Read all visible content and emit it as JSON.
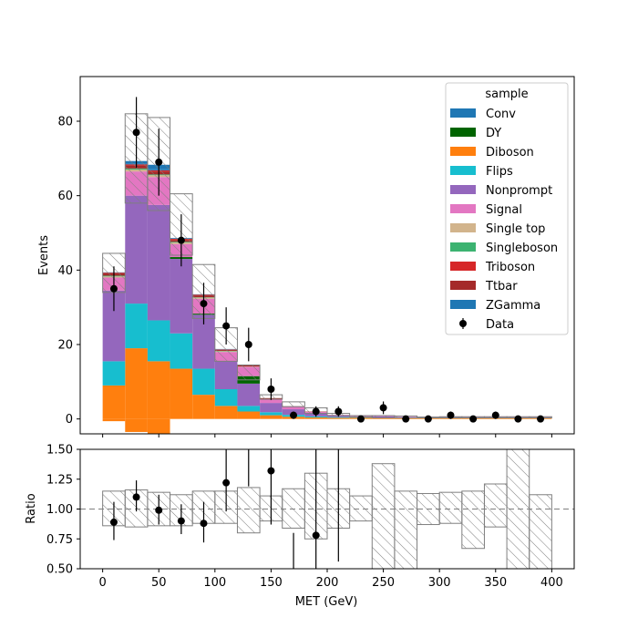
{
  "chart_data": {
    "type": "bar",
    "stacked": true,
    "bin_edges": [
      0,
      20,
      40,
      60,
      80,
      100,
      120,
      140,
      160,
      180,
      200,
      220,
      240,
      260,
      280,
      300,
      320,
      340,
      360,
      380,
      400
    ],
    "x_bin_centers": [
      10,
      30,
      50,
      70,
      90,
      110,
      130,
      150,
      170,
      190,
      210,
      230,
      250,
      270,
      290,
      310,
      330,
      350,
      370,
      390
    ],
    "xlabel": "MET (GeV)",
    "ylabel": "Events",
    "ratio_ylabel": "Ratio",
    "xlim": [
      -20,
      420
    ],
    "ylim": [
      -4,
      92
    ],
    "ratio_ylim": [
      0.5,
      1.5
    ],
    "x_ticks": [
      "0",
      "50",
      "100",
      "150",
      "200",
      "250",
      "300",
      "350",
      "400"
    ],
    "y_ticks": [
      "0",
      "20",
      "40",
      "60",
      "80"
    ],
    "ratio_y_ticks": [
      "0.50",
      "0.75",
      "1.00",
      "1.25",
      "1.50"
    ],
    "grid": false,
    "legend_title": "sample",
    "legend_position": "top-right",
    "series": [
      {
        "name": "Diboson",
        "color": "#ff7f0e",
        "values": [
          9,
          19,
          15.5,
          13.5,
          6.5,
          3.5,
          2,
          1,
          0.6,
          0.4,
          0.3,
          0.3,
          0.3,
          0.2,
          0.2,
          0.2,
          0.2,
          0.2,
          0.2,
          0.2
        ],
        "neg": [
          -0.6,
          -3.5,
          -4,
          0,
          0,
          0,
          0,
          0,
          0,
          0,
          0,
          0,
          0,
          0,
          0,
          0,
          0,
          0,
          0,
          0
        ]
      },
      {
        "name": "Flips",
        "color": "#17becf",
        "values": [
          6.5,
          12,
          11,
          9.5,
          7,
          4.5,
          1.5,
          0.8,
          0.5,
          0.3,
          0.2,
          0.1,
          0.1,
          0.1,
          0.1,
          0.1,
          0.1,
          0.1,
          0.1,
          0.1
        ]
      },
      {
        "name": "Nonprompt",
        "color": "#9467bd",
        "values": [
          19,
          29,
          31,
          20,
          14.5,
          7.5,
          6,
          2.5,
          1.5,
          0.7,
          0.4,
          0.3,
          0.3,
          0.2,
          0.2,
          0.2,
          0.1,
          0.1,
          0.1,
          0.1
        ]
      },
      {
        "name": "DY",
        "color": "#006400",
        "values": [
          0,
          0,
          0,
          0.5,
          0.3,
          0,
          2,
          0,
          0,
          0,
          0,
          0,
          0,
          0,
          0,
          0,
          0,
          0,
          0,
          0
        ]
      },
      {
        "name": "Signal",
        "color": "#e377c2",
        "values": [
          3.5,
          6.5,
          7.5,
          3.5,
          4,
          2.5,
          2.5,
          1,
          0.7,
          0.5,
          0.2,
          0.1,
          0.1,
          0.1,
          0.1,
          0.1,
          0.1,
          0.1,
          0.1,
          0.1
        ]
      },
      {
        "name": "Single top",
        "color": "#d2b48c",
        "values": [
          0.3,
          0.5,
          0.5,
          0.4,
          0.3,
          0.2,
          0.1,
          0.1,
          0,
          0,
          0,
          0,
          0,
          0,
          0,
          0,
          0,
          0,
          0,
          0
        ]
      },
      {
        "name": "Singleboson",
        "color": "#3cb371",
        "values": [
          0.2,
          0.3,
          0.2,
          0.2,
          0.1,
          0.1,
          0,
          0,
          0,
          0,
          0,
          0,
          0,
          0,
          0,
          0,
          0,
          0,
          0,
          0
        ]
      },
      {
        "name": "Ttbar",
        "color": "#a52a2a",
        "values": [
          0.6,
          0.8,
          0.8,
          0.5,
          0.5,
          0.3,
          0.3,
          0.2,
          0.1,
          0.1,
          0,
          0,
          0,
          0,
          0,
          0,
          0,
          0,
          0,
          0
        ]
      },
      {
        "name": "Triboson",
        "color": "#d62728",
        "values": [
          0.2,
          0.3,
          0.3,
          0.3,
          0.2,
          0.1,
          0.1,
          0,
          0,
          0,
          0,
          0,
          0,
          0,
          0,
          0,
          0,
          0,
          0,
          0
        ]
      },
      {
        "name": "Conv",
        "color": "#1f77b4",
        "values": [
          0.1,
          0.3,
          0.3,
          0.2,
          0.1,
          0.1,
          0,
          0,
          0,
          0,
          0,
          0,
          0,
          0,
          0,
          0,
          0,
          0,
          0,
          0
        ]
      },
      {
        "name": "ZGamma",
        "color": "#1f77b4",
        "values": [
          0,
          0.6,
          1.2,
          0,
          0,
          0,
          0,
          0,
          0,
          0,
          0,
          0,
          0,
          0,
          0,
          0,
          0,
          0,
          0,
          0
        ]
      }
    ],
    "legend_order": [
      "Conv",
      "DY",
      "Diboson",
      "Flips",
      "Nonprompt",
      "Signal",
      "Single top",
      "Singleboson",
      "Triboson",
      "Ttbar",
      "ZGamma",
      "Data"
    ],
    "uncertainty_band": {
      "lo": [
        34,
        58,
        56,
        44,
        27,
        15.5,
        10.5,
        5.3,
        3.3,
        1.5,
        0.9,
        0.5,
        0.3,
        0.3,
        0.3,
        0.3,
        0.3,
        0.3,
        0.3,
        0.3
      ],
      "hi": [
        44.5,
        82,
        81,
        60.5,
        41.5,
        24.5,
        14.5,
        6.5,
        4.6,
        3,
        1.5,
        0.9,
        0.9,
        0.8,
        0.5,
        0.6,
        0.6,
        0.6,
        0.6,
        0.6
      ]
    },
    "data": {
      "name": "Data",
      "x": [
        10,
        30,
        50,
        70,
        90,
        110,
        130,
        150,
        170,
        190,
        210,
        230,
        250,
        270,
        290,
        310,
        330,
        350,
        370,
        390
      ],
      "y": [
        35,
        77,
        69,
        48,
        31,
        25,
        20,
        8,
        1,
        2,
        2,
        0,
        3,
        0,
        0,
        1,
        0,
        1,
        0,
        0
      ],
      "err": [
        6,
        9.5,
        9,
        7,
        5.6,
        5,
        4.5,
        2.9,
        1,
        1.4,
        1.4,
        0,
        1.7,
        0,
        0,
        1,
        0,
        1,
        0,
        0
      ]
    },
    "ratio_band": {
      "lo": [
        0.86,
        0.85,
        0.86,
        0.86,
        0.88,
        0.88,
        0.8,
        0.9,
        0.84,
        0.75,
        0.84,
        0.9,
        0.5,
        0.5,
        0.87,
        0.88,
        0.67,
        0.85,
        0.5,
        0.5
      ],
      "hi": [
        1.15,
        1.16,
        1.14,
        1.12,
        1.15,
        1.15,
        1.18,
        1.11,
        1.17,
        1.3,
        1.17,
        1.11,
        1.38,
        1.15,
        1.13,
        1.14,
        1.15,
        1.21,
        1.5,
        1.12
      ]
    },
    "ratio_points": {
      "x": [
        10,
        30,
        50,
        70,
        90,
        110,
        130,
        150,
        170,
        190,
        210
      ],
      "y": [
        0.89,
        1.1,
        0.99,
        0.9,
        0.88,
        1.22,
        null,
        1.32,
        null,
        0.78,
        null
      ],
      "lo": [
        0.74,
        0.98,
        0.87,
        0.79,
        0.72,
        0.98,
        1.19,
        0.87,
        0.5,
        0.5,
        0.56
      ],
      "hi": [
        1.06,
        1.24,
        1.12,
        1.04,
        1.06,
        1.5,
        1.5,
        1.5,
        0.8,
        1.5,
        1.5
      ],
      "reference": 1.0
    }
  }
}
